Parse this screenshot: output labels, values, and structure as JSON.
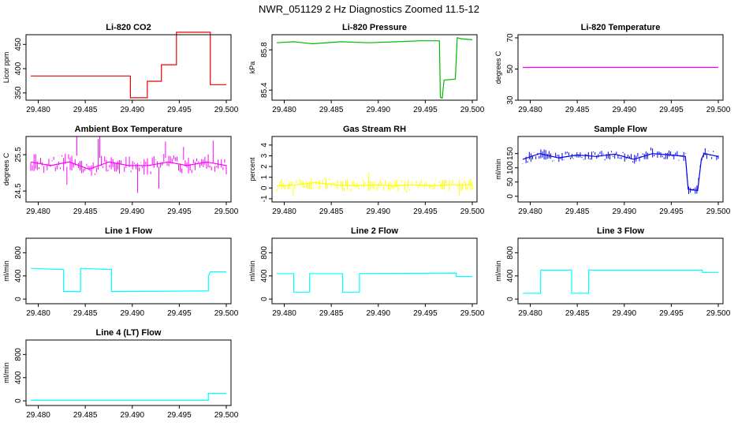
{
  "figure": {
    "title": "NWR_051129  2 Hz Diagnostics Zoomed 11.5-12"
  },
  "chart_data": [
    {
      "type": "line",
      "title": "Li-820 CO2",
      "ylabel": "Licor ppm",
      "color": "#ee0000",
      "xlim": [
        29.4792,
        29.5
      ],
      "ylim": [
        335,
        470
      ],
      "xticks": [
        29.48,
        29.485,
        29.49,
        29.495,
        29.5
      ],
      "xtick_labels": [
        "29.480",
        "29.485",
        "29.490",
        "29.495",
        "29.500"
      ],
      "yticks": [
        350,
        400,
        450
      ],
      "ytick_labels": [
        "350",
        "400",
        "450"
      ],
      "x": [
        29.4792,
        29.4898,
        29.4898,
        29.4916,
        29.4916,
        29.4931,
        29.4931,
        29.4947,
        29.4947,
        29.4983,
        29.4983,
        29.5
      ],
      "series": [
        {
          "values": [
            385,
            385,
            340,
            340,
            374,
            374,
            408,
            408,
            475,
            475,
            367,
            367
          ]
        }
      ]
    },
    {
      "type": "line",
      "title": "Li-820 Pressure",
      "ylabel": "kPa",
      "color": "#00bb00",
      "xlim": [
        29.4792,
        29.5
      ],
      "ylim": [
        85.3,
        85.95
      ],
      "xticks": [
        29.48,
        29.485,
        29.49,
        29.495,
        29.5
      ],
      "xtick_labels": [
        "29.480",
        "29.485",
        "29.490",
        "29.495",
        "29.500"
      ],
      "yticks": [
        85.4,
        85.8
      ],
      "ytick_labels": [
        "85.4",
        "85.8"
      ],
      "x": [
        29.4792,
        29.481,
        29.483,
        29.486,
        29.489,
        29.492,
        29.4945,
        29.4965,
        29.4966,
        29.4968,
        29.497,
        29.4982,
        29.4984,
        29.4988,
        29.5
      ],
      "series": [
        {
          "values": [
            85.87,
            85.88,
            85.86,
            85.88,
            85.87,
            85.88,
            85.89,
            85.89,
            85.33,
            85.32,
            85.5,
            85.51,
            85.92,
            85.91,
            85.9
          ]
        }
      ]
    },
    {
      "type": "line",
      "title": "Li-820 Temperature",
      "ylabel": "degrees C",
      "color": "#ee00ee",
      "xlim": [
        29.4792,
        29.5
      ],
      "ylim": [
        30,
        72
      ],
      "xticks": [
        29.48,
        29.485,
        29.49,
        29.495,
        29.5
      ],
      "xtick_labels": [
        "29.480",
        "29.485",
        "29.490",
        "29.495",
        "29.500"
      ],
      "yticks": [
        30,
        50,
        70
      ],
      "ytick_labels": [
        "30",
        "50",
        "70"
      ],
      "x": [
        29.4792,
        29.5
      ],
      "series": [
        {
          "values": [
            51,
            51
          ]
        }
      ]
    },
    {
      "type": "line",
      "title": "Ambient Box Temperature",
      "ylabel": "degrees C",
      "color": "#ff00ff",
      "xlim": [
        29.4792,
        29.5
      ],
      "ylim": [
        24.2,
        26.0
      ],
      "xticks": [
        29.48,
        29.485,
        29.49,
        29.495,
        29.5
      ],
      "xtick_labels": [
        "29.480",
        "29.485",
        "29.490",
        "29.495",
        "29.500"
      ],
      "yticks": [
        24.5,
        25.5
      ],
      "ytick_labels": [
        "24.5",
        "25.5"
      ],
      "x": [
        29.4792,
        29.4813,
        29.4833,
        29.4854,
        29.4875,
        29.4896,
        29.4917,
        29.4938,
        29.4958,
        29.4979,
        29.5
      ],
      "series": [
        {
          "values": [
            25.3,
            25.2,
            25.3,
            25.1,
            25.3,
            25.2,
            25.2,
            25.3,
            25.2,
            25.3,
            25.2
          ]
        }
      ]
    },
    {
      "type": "line",
      "title": "Gas Stream RH",
      "ylabel": "percent",
      "color": "#ffff00",
      "xlim": [
        29.4792,
        29.5
      ],
      "ylim": [
        -1.3,
        4.8
      ],
      "xticks": [
        29.48,
        29.485,
        29.49,
        29.495,
        29.5
      ],
      "xtick_labels": [
        "29.480",
        "29.485",
        "29.490",
        "29.495",
        "29.500"
      ],
      "yticks": [
        -1,
        0,
        1,
        2,
        3,
        4
      ],
      "ytick_labels": [
        "-1",
        "0",
        "1",
        "2",
        "3",
        "4"
      ],
      "x": [
        29.4792,
        29.4813,
        29.4833,
        29.4854,
        29.4875,
        29.4896,
        29.4917,
        29.4938,
        29.4958,
        29.4979,
        29.5
      ],
      "series": [
        {
          "values": [
            0.2,
            0.3,
            0.5,
            0.3,
            0.2,
            0.3,
            0.2,
            0.3,
            0.2,
            0.3,
            0.3
          ]
        }
      ]
    },
    {
      "type": "line",
      "title": "Sample Flow",
      "ylabel": "ml/min",
      "color": "#0000ee",
      "xlim": [
        29.4792,
        29.5
      ],
      "ylim": [
        -20,
        210
      ],
      "xticks": [
        29.48,
        29.485,
        29.49,
        29.495,
        29.5
      ],
      "xtick_labels": [
        "29.480",
        "29.485",
        "29.490",
        "29.495",
        "29.500"
      ],
      "yticks": [
        0,
        50,
        100,
        150
      ],
      "ytick_labels": [
        "0",
        "50",
        "100",
        "150"
      ],
      "x": [
        29.4792,
        29.481,
        29.483,
        29.485,
        29.487,
        29.489,
        29.491,
        29.493,
        29.495,
        29.4965,
        29.4968,
        29.4978,
        29.4982,
        29.4985,
        29.5
      ],
      "series": [
        {
          "values": [
            130,
            150,
            135,
            145,
            140,
            148,
            130,
            150,
            145,
            140,
            25,
            20,
            130,
            150,
            140
          ]
        }
      ]
    },
    {
      "type": "line",
      "title": "Line 1 Flow",
      "ylabel": "ml/min",
      "color": "#00ffff",
      "xlim": [
        29.4792,
        29.5
      ],
      "ylim": [
        -80,
        1050
      ],
      "xticks": [
        29.48,
        29.485,
        29.49,
        29.495,
        29.5
      ],
      "xtick_labels": [
        "29.480",
        "29.485",
        "29.490",
        "29.495",
        "29.500"
      ],
      "yticks": [
        0,
        400,
        800
      ],
      "ytick_labels": [
        "0",
        "400",
        "800"
      ],
      "x": [
        29.4792,
        29.4827,
        29.4827,
        29.4845,
        29.4845,
        29.4878,
        29.4878,
        29.4981,
        29.4981,
        29.4983,
        29.5
      ],
      "series": [
        {
          "values": [
            530,
            510,
            130,
            130,
            530,
            510,
            130,
            140,
            400,
            470,
            470
          ]
        }
      ]
    },
    {
      "type": "line",
      "title": "Line 2 Flow",
      "ylabel": "ml/min",
      "color": "#00ffff",
      "xlim": [
        29.4792,
        29.5
      ],
      "ylim": [
        -80,
        1050
      ],
      "xticks": [
        29.48,
        29.485,
        29.49,
        29.495,
        29.5
      ],
      "xtick_labels": [
        "29.480",
        "29.485",
        "29.490",
        "29.495",
        "29.500"
      ],
      "yticks": [
        0,
        400,
        800
      ],
      "ytick_labels": [
        "0",
        "400",
        "800"
      ],
      "x": [
        29.4792,
        29.481,
        29.481,
        29.4827,
        29.4827,
        29.4862,
        29.4862,
        29.488,
        29.488,
        29.4983,
        29.4983,
        29.5
      ],
      "series": [
        {
          "values": [
            440,
            440,
            120,
            120,
            440,
            440,
            120,
            120,
            440,
            450,
            390,
            390
          ]
        }
      ]
    },
    {
      "type": "line",
      "title": "Line 3 Flow",
      "ylabel": "ml/min",
      "color": "#00ffff",
      "xlim": [
        29.4792,
        29.5
      ],
      "ylim": [
        -80,
        1050
      ],
      "xticks": [
        29.48,
        29.485,
        29.49,
        29.495,
        29.5
      ],
      "xtick_labels": [
        "29.480",
        "29.485",
        "29.490",
        "29.495",
        "29.500"
      ],
      "yticks": [
        0,
        400,
        800
      ],
      "ytick_labels": [
        "0",
        "400",
        "800"
      ],
      "x": [
        29.4792,
        29.4811,
        29.4811,
        29.4844,
        29.4844,
        29.4862,
        29.4862,
        29.4983,
        29.4983,
        29.5
      ],
      "series": [
        {
          "values": [
            100,
            100,
            500,
            500,
            100,
            100,
            500,
            500,
            460,
            460
          ]
        }
      ]
    },
    {
      "type": "line",
      "title": "Line 4 (LT) Flow",
      "ylabel": "ml/min",
      "color": "#00ffff",
      "xlim": [
        29.4792,
        29.5
      ],
      "ylim": [
        -80,
        1050
      ],
      "xticks": [
        29.48,
        29.485,
        29.49,
        29.495,
        29.5
      ],
      "xtick_labels": [
        "29.480",
        "29.485",
        "29.490",
        "29.495",
        "29.500"
      ],
      "yticks": [
        0,
        400,
        800
      ],
      "ytick_labels": [
        "0",
        "400",
        "800"
      ],
      "x": [
        29.4792,
        29.4981,
        29.4981,
        29.5
      ],
      "series": [
        {
          "values": [
            10,
            10,
            130,
            130
          ]
        }
      ]
    }
  ]
}
